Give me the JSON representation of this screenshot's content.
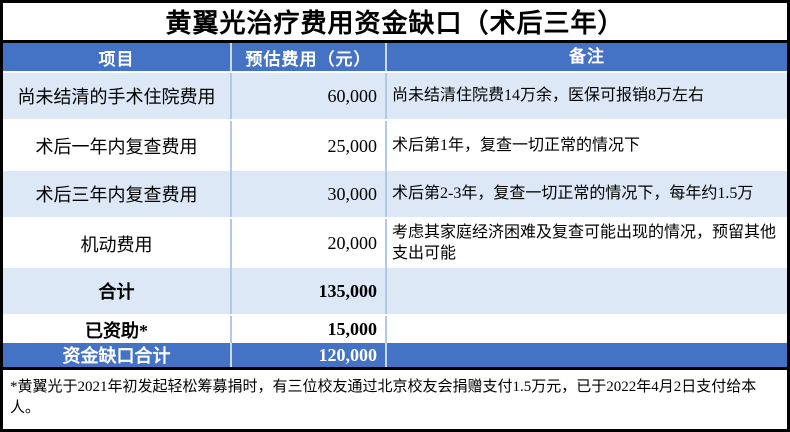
{
  "title": "黄翼光治疗费用资金缺口（术后三年）",
  "table": {
    "headers": {
      "item": "项目",
      "cost": "预估费用（元）",
      "note": "备注"
    },
    "rows": [
      {
        "item": "尚未结清的手术住院费用",
        "cost": "60,000",
        "note": "尚未结清住院费14万余，医保可报销8万左右"
      },
      {
        "item": "术后一年内复查费用",
        "cost": "25,000",
        "note": "术后第1年，复查一切正常的情况下"
      },
      {
        "item": "术后三年内复查费用",
        "cost": "30,000",
        "note": "术后第2-3年，复查一切正常的情况下，每年约1.5万"
      },
      {
        "item": "机动费用",
        "cost": "20,000",
        "note": "考虑其家庭经济困难及复查可能出现的情况，预留其他支出可能"
      },
      {
        "item": "合计",
        "cost": "135,000",
        "note": ""
      },
      {
        "item": "已资助*",
        "cost": "15,000",
        "note": ""
      },
      {
        "item": "资金缺口合计",
        "cost": "120,000",
        "note": ""
      }
    ]
  },
  "footnote": "*黄翼光于2021年初发起轻松筹募捐时，有三位校友通过北京校友会捐赠支付1.5万元，已于2022年4月2日支付给本人。",
  "colors": {
    "header_bg": "#4472C4",
    "light_row_bg": "#DCE8F5",
    "dark_row_bg": "#4472C4",
    "header_text": "#FFFFFF",
    "body_text": "#000000"
  }
}
